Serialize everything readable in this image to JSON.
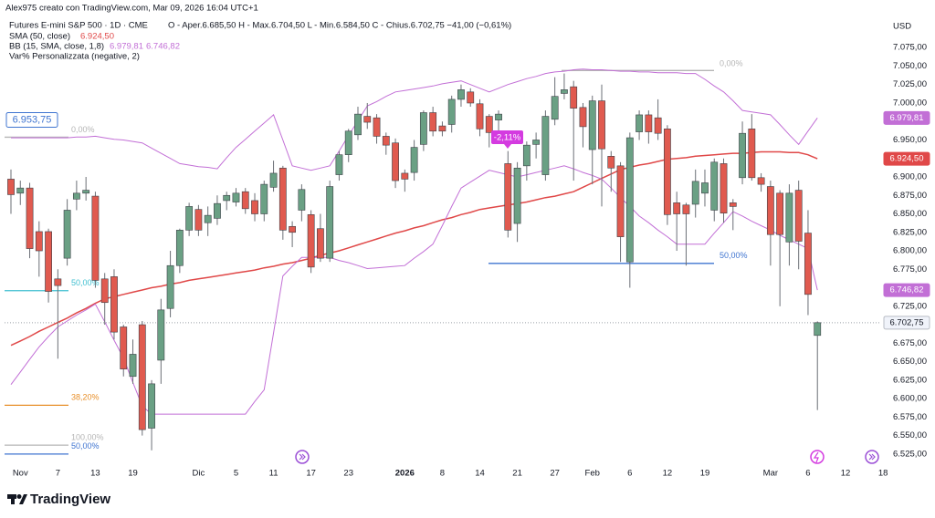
{
  "header": {
    "credit": "Alex975 creato con TradingView.com, Mar 09, 2026 16:04 UTC+1",
    "symbol": "Futures E-mini S&P 500 · 1D · CME",
    "ohlc": "O - Aper.6.685,50   H - Max.6.704,50   L - Min.6.584,50   C - Chius.6.702,75   −41,00 (−0,61%)",
    "indicator_3": "Var% Personalizzata (negative, 2)"
  },
  "footer": {
    "brand": "TradingView"
  },
  "chart_data": {
    "type": "candlestick",
    "currency": "USD",
    "categories": [
      null,
      "Nov",
      null,
      null,
      null,
      "7",
      null,
      null,
      null,
      "13",
      null,
      null,
      null,
      "19",
      null,
      null,
      null,
      null,
      null,
      null,
      "Dic",
      null,
      null,
      null,
      "5",
      null,
      null,
      null,
      "11",
      null,
      null,
      null,
      "17",
      null,
      null,
      null,
      "23",
      null,
      null,
      null,
      null,
      null,
      "2026",
      null,
      null,
      null,
      "8",
      null,
      null,
      null,
      "14",
      null,
      null,
      null,
      "21",
      null,
      null,
      null,
      "27",
      null,
      null,
      null,
      "Feb",
      null,
      null,
      null,
      "6",
      null,
      null,
      null,
      "12",
      null,
      null,
      null,
      "19",
      null,
      null,
      null,
      null,
      null,
      null,
      "Mar",
      null,
      null,
      null,
      "6",
      null,
      null,
      null,
      "12",
      null,
      null,
      null,
      "18"
    ],
    "open": [
      6897,
      6878,
      6885,
      6826,
      6826,
      6762,
      6790,
      6870,
      6878,
      6874,
      6762,
      6765,
      6697,
      6630,
      6700,
      6560,
      6652,
      6722,
      6780,
      6828,
      6856,
      6838,
      6844,
      6868,
      6866,
      6880,
      6868,
      6850,
      6886,
      6912,
      6833,
      6855,
      6849,
      6830,
      6790,
      6903,
      6930,
      6957,
      6982,
      6980,
      6955,
      6946,
      6905,
      6906,
      6944,
      6987,
      6969,
      6971,
      7005,
      7015,
      6999,
      6982,
      6977,
      6918,
      6837,
      6915,
      6944,
      6903,
      6978,
      7013,
      7022,
      6994,
      6937,
      7003,
      6928,
      6915,
      6785,
      6961,
      6984,
      6980,
      6965,
      6865,
      6862,
      6863,
      6878,
      6855,
      6918,
      6865,
      6899,
      6965,
      6899,
      6887,
      6878,
      6812,
      6882,
      6824,
      6685.5,
      null,
      null,
      null,
      null,
      null,
      null,
      null
    ],
    "high": [
      6910,
      6895,
      6892,
      6840,
      6830,
      6775,
      6870,
      6895,
      6900,
      6880,
      6770,
      6775,
      6700,
      6680,
      6705,
      6625,
      6735,
      6800,
      6830,
      6865,
      6862,
      6860,
      6875,
      6880,
      6885,
      6885,
      6878,
      6895,
      6922,
      6915,
      6840,
      6890,
      6855,
      6850,
      6895,
      6935,
      6965,
      6995,
      7000,
      6985,
      6960,
      6952,
      6910,
      6950,
      6990,
      6995,
      6975,
      7010,
      7025,
      7020,
      7005,
      6985,
      6990,
      6935,
      6920,
      6948,
      6960,
      6990,
      7035,
      7040,
      7030,
      7000,
      7010,
      7025,
      6935,
      6920,
      6960,
      6990,
      6990,
      7005,
      6970,
      6880,
      6865,
      6910,
      6910,
      6925,
      6925,
      6870,
      6975,
      6985,
      6905,
      6895,
      6882,
      6890,
      6895,
      6855,
      6704.5,
      null,
      null,
      null,
      null,
      null,
      null,
      null
    ],
    "low": [
      6850,
      6862,
      6790,
      6765,
      6730,
      6654,
      6780,
      6855,
      6868,
      6750,
      6700,
      6680,
      6630,
      6620,
      6550,
      6530,
      6620,
      6710,
      6770,
      6820,
      6820,
      6820,
      6835,
      6855,
      6860,
      6850,
      6840,
      6840,
      6880,
      6815,
      6805,
      6840,
      6770,
      6785,
      6785,
      6895,
      6920,
      6950,
      6965,
      6945,
      6930,
      6885,
      6880,
      6895,
      6935,
      6955,
      6955,
      6960,
      6995,
      6995,
      6955,
      6940,
      6950,
      6818,
      6812,
      6895,
      6925,
      6895,
      6970,
      7005,
      6895,
      6940,
      6890,
      6860,
      6880,
      6785,
      6750,
      6950,
      6945,
      6950,
      6835,
      6800,
      6780,
      6845,
      6860,
      6840,
      6838,
      6828,
      6890,
      6895,
      6880,
      6780,
      6725,
      6780,
      6775,
      6713,
      6584.5,
      null,
      null,
      null,
      null,
      null,
      null,
      null
    ],
    "close": [
      6876,
      6885,
      6803,
      6800,
      6745,
      6753,
      6855,
      6878,
      6882,
      6760,
      6730,
      6690,
      6640,
      6660,
      6558,
      6620,
      6720,
      6780,
      6828,
      6860,
      6828,
      6848,
      6864,
      6875,
      6878,
      6857,
      6850,
      6890,
      6905,
      6828,
      6825,
      6883,
      6778,
      6790,
      6887,
      6930,
      6962,
      6985,
      6974,
      6955,
      6943,
      6895,
      6897,
      6940,
      6987,
      6962,
      6962,
      7005,
      7018,
      7000,
      6965,
      6960,
      6985,
      6828,
      6912,
      6943,
      6950,
      6982,
      7009,
      7018,
      6993,
      6968,
      7003,
      6938,
      6912,
      6819,
      6953,
      6984,
      6961,
      6959,
      6849,
      6850,
      6850,
      6894,
      6892,
      6920,
      6851,
      6860,
      6959,
      6899,
      6890,
      6822,
      6822,
      6878,
      6813,
      6741,
      6702.75,
      null,
      null,
      null,
      null,
      null,
      null,
      null
    ],
    "up_color": "#6aa084",
    "down_color": "#e05a4f",
    "last_close_label": "6.702,75",
    "series": [
      {
        "name": "SMA (50, close)",
        "color": "#e04848",
        "last_label": "6.924,50",
        "values": [
          6672,
          6678,
          6684,
          6691,
          6697,
          6703,
          6709,
          6716,
          6722,
          6729,
          6735,
          6738,
          6741,
          6744,
          6747,
          6750,
          6752,
          6755,
          6757,
          6760,
          6762,
          6764,
          6766,
          6768,
          6770,
          6772,
          6774,
          6777,
          6779,
          6782,
          6784,
          6787,
          6790,
          6794,
          6797,
          6800,
          6804,
          6808,
          6812,
          6816,
          6820,
          6824,
          6827,
          6831,
          6834,
          6838,
          6842,
          6845,
          6849,
          6852,
          6856,
          6858,
          6860,
          6862,
          6864,
          6866,
          6869,
          6872,
          6874,
          6877,
          6880,
          6886,
          6892,
          6898,
          6904,
          6910,
          6913,
          6916,
          6918,
          6921,
          6924,
          6925,
          6926,
          6928,
          6929,
          6930,
          6931,
          6932,
          6932,
          6933,
          6934,
          6934,
          6934,
          6933,
          6933,
          6930,
          6924.5,
          null,
          null,
          null,
          null,
          null,
          null,
          null
        ]
      },
      {
        "name": "BB (15, SMA, close, 1,8)",
        "color": "#c26fd6",
        "last_label": "6.979,81",
        "values": [
          6953,
          6953,
          6953,
          6953,
          6953,
          6953,
          6953,
          6954,
          6954,
          6955,
          6953,
          6951,
          6950,
          6948,
          6946,
          6939,
          6932,
          6925,
          6918,
          6916,
          6914,
          6913,
          6911,
          6926,
          6940,
          6951,
          6962,
          6973,
          6984,
          6950,
          6915,
          6912,
          6909,
          6912,
          6915,
          6935,
          6956,
          6976,
          6996,
          7002,
          7009,
          7015,
          7017,
          7019,
          7021,
          7023,
          7026,
          7028,
          7030,
          7025,
          7020,
          7015,
          7020,
          7025,
          7029,
          7033,
          7036,
          7040,
          7042,
          7043,
          7045,
          7046,
          7045,
          7045,
          7044,
          7043,
          7043,
          7042,
          7042,
          7041,
          7041,
          7041,
          7040,
          7040,
          7032,
          7023,
          7015,
          7003,
          6990,
          6988,
          6986,
          6984,
          6971,
          6957,
          6944,
          6962,
          6979.81,
          null,
          null,
          null,
          null,
          null,
          null,
          null
        ]
      },
      {
        "name": "BB lower",
        "color": "#c26fd6",
        "last_label": "6.746,82",
        "values": [
          6619,
          6636,
          6653,
          6670,
          6684,
          6697,
          6705,
          6713,
          6720,
          6728,
          6704,
          6679,
          6655,
          6622,
          6590,
          6579,
          6579,
          6579,
          6579,
          6579,
          6579,
          6579,
          6579,
          6579,
          6579,
          6579,
          6596,
          6612,
          6689,
          6766,
          6779,
          6791,
          6791,
          6791,
          6791,
          6787,
          6784,
          6780,
          6776,
          6777,
          6778,
          6779,
          6780,
          6790,
          6799,
          6809,
          6834,
          6860,
          6885,
          6893,
          6901,
          6909,
          6906,
          6903,
          6900,
          6903,
          6906,
          6909,
          6912,
          6915,
          6911,
          6906,
          6902,
          6897,
          6885,
          6872,
          6860,
          6847,
          6838,
          6828,
          6819,
          6809,
          6809,
          6809,
          6809,
          6824,
          6838,
          6853,
          6847,
          6840,
          6834,
          6828,
          6821,
          6815,
          6809,
          6803,
          6746.82,
          null,
          null,
          null,
          null,
          null,
          null,
          null
        ]
      }
    ],
    "ylim": [
      6510,
      7095
    ],
    "yticks": [
      {
        "value": 7075,
        "label": "7.075,00"
      },
      {
        "value": 7050,
        "label": "7.050,00"
      },
      {
        "value": 7025,
        "label": "7.025,00"
      },
      {
        "value": 7000,
        "label": "7.000,00"
      },
      {
        "value": 6975,
        "label": "6.975,00"
      },
      {
        "value": 6950,
        "label": "6.950,00"
      },
      {
        "value": 6925,
        "label": "6.925,00"
      },
      {
        "value": 6900,
        "label": "6.900,00"
      },
      {
        "value": 6875,
        "label": "6.875,00"
      },
      {
        "value": 6850,
        "label": "6.850,00"
      },
      {
        "value": 6825,
        "label": "6.825,00"
      },
      {
        "value": 6800,
        "label": "6.800,00"
      },
      {
        "value": 6775,
        "label": "6.775,00"
      },
      {
        "value": 6750,
        "label": "6.750,00"
      },
      {
        "value": 6725,
        "label": "6.725,00"
      },
      {
        "value": 6700,
        "label": "6.700,00"
      },
      {
        "value": 6675,
        "label": "6.675,00"
      },
      {
        "value": 6650,
        "label": "6.650,00"
      },
      {
        "value": 6625,
        "label": "6.625,00"
      },
      {
        "value": 6600,
        "label": "6.600,00"
      },
      {
        "value": 6575,
        "label": "6.575,00"
      },
      {
        "value": 6550,
        "label": "6.550,00"
      },
      {
        "value": 6525,
        "label": "6.525,00"
      }
    ],
    "drawings": [
      {
        "label": "0,00%",
        "value": 6953.75,
        "value_label": "6.953,75",
        "color": "#b5b5b5"
      },
      {
        "label": "50,00%",
        "value": 6746,
        "color": "#3fbfd0"
      },
      {
        "label": "38,20%",
        "value": 6591,
        "color": "#e8902b"
      },
      {
        "label": "100,00%",
        "value": 6537,
        "color": "#b5b5b5"
      },
      {
        "label": "50,00%",
        "value": 6525,
        "color": "#3f74d0"
      },
      {
        "label": "50,00%",
        "value": 6783,
        "color": "#3f74d0"
      },
      {
        "label": "0,00%",
        "value": 7044,
        "color": "#b5b5b5"
      }
    ],
    "callout": {
      "label": "-2,11%",
      "color": "#d43be0"
    }
  }
}
